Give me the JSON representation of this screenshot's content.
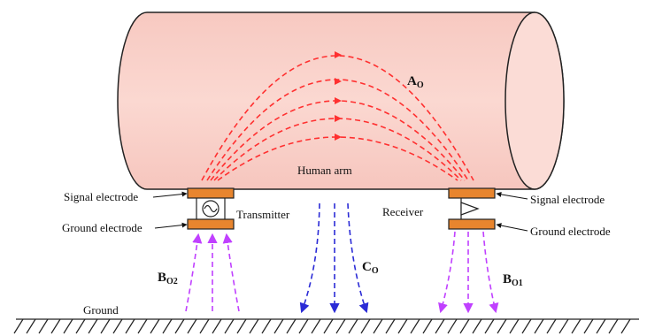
{
  "labels": {
    "human_arm": "Human arm",
    "signal_electrode_left": "Signal electrode",
    "ground_electrode_left": "Ground electrode",
    "signal_electrode_right": "Signal electrode",
    "ground_electrode_right": "Ground electrode",
    "transmitter": "Transmitter",
    "receiver": "Receiver",
    "ground": "Ground"
  },
  "paths": {
    "a_main": "A",
    "a_sub": "O",
    "b_left_main": "B",
    "b_left_sub": "O2",
    "b_right_main": "B",
    "b_right_sub": "O1",
    "c_main": "C",
    "c_sub": "O"
  },
  "colors": {
    "arm_fill": "#f9cfc8",
    "arm_stroke": "#222222",
    "field_red": "#ff3030",
    "return_blue": "#2b2bd6",
    "leak_purple": "#c040ff",
    "electrode_orange": "#e8852e"
  },
  "icons": {
    "transmitter": "ac-source-icon",
    "receiver": "amplifier-icon"
  }
}
